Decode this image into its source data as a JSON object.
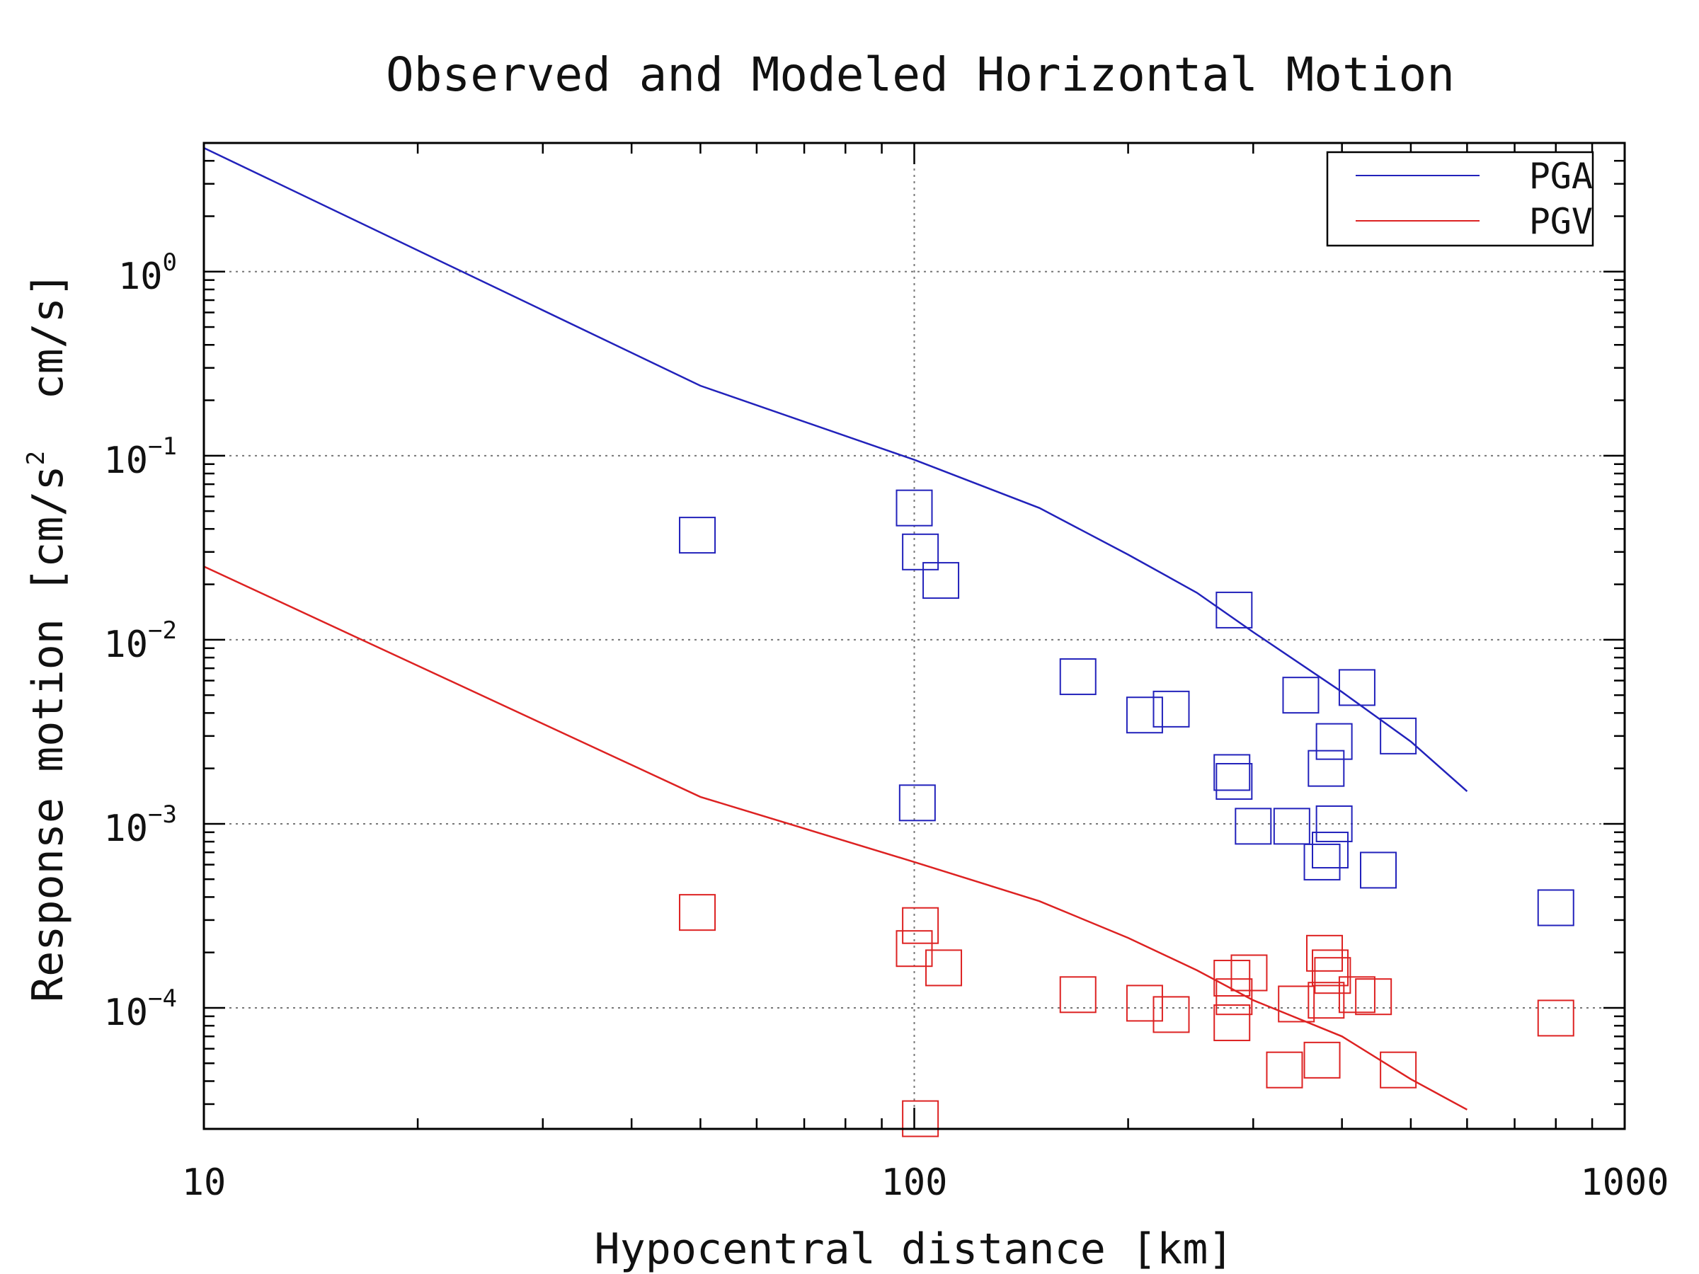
{
  "chart_data": {
    "type": "scatter",
    "title": "Observed and Modeled Horizontal Motion",
    "xlabel": "Hypocentral distance [km]",
    "ylabel_parts": {
      "before": "Response motion [cm/s",
      "sup": "2",
      "after": "  cm/s]"
    },
    "x_scale": "log",
    "y_scale": "log",
    "xlim": [
      10,
      1000
    ],
    "ylim": [
      2.2e-05,
      5
    ],
    "grid": true,
    "legend_position": "top-right",
    "x_ticks": [
      {
        "value": 10,
        "label": "10"
      },
      {
        "value": 100,
        "label": "100"
      },
      {
        "value": 1000,
        "label": "1000"
      }
    ],
    "y_ticks": [
      {
        "value": 1,
        "base": "10",
        "exp": "0"
      },
      {
        "value": 0.1,
        "base": "10",
        "exp": "−1"
      },
      {
        "value": 0.01,
        "base": "10",
        "exp": "−2"
      },
      {
        "value": 0.001,
        "base": "10",
        "exp": "−3"
      },
      {
        "value": 0.0001,
        "base": "10",
        "exp": "−4"
      }
    ],
    "colors": {
      "pga": "#2222bb",
      "pgv": "#dd2222",
      "axes": "#000000",
      "grid": "#777777"
    },
    "series": [
      {
        "name": "PGA",
        "color": "#2222bb",
        "model_line": [
          [
            10,
            4.7
          ],
          [
            50,
            0.24
          ],
          [
            100,
            0.095
          ],
          [
            150,
            0.052
          ],
          [
            200,
            0.029
          ],
          [
            250,
            0.018
          ],
          [
            300,
            0.011
          ],
          [
            400,
            0.0052
          ],
          [
            500,
            0.0028
          ],
          [
            600,
            0.0015
          ]
        ],
        "observed": [
          [
            49.5,
            0.037
          ],
          [
            100,
            0.052
          ],
          [
            102,
            0.03
          ],
          [
            109,
            0.021
          ],
          [
            170,
            0.0063
          ],
          [
            211,
            0.0039
          ],
          [
            230,
            0.0042
          ],
          [
            282,
            0.0145
          ],
          [
            280,
            0.0019
          ],
          [
            282,
            0.0017
          ],
          [
            300,
            0.00097
          ],
          [
            340,
            0.00097
          ],
          [
            350,
            0.005
          ],
          [
            380,
            0.002
          ],
          [
            390,
            0.0028
          ],
          [
            390,
            0.001
          ],
          [
            385,
            0.00072
          ],
          [
            375,
            0.00062
          ],
          [
            420,
            0.0055
          ],
          [
            450,
            0.00056
          ],
          [
            480,
            0.003
          ],
          [
            800,
            0.00035
          ],
          [
            101,
            0.0013
          ]
        ]
      },
      {
        "name": "PGV",
        "color": "#dd2222",
        "model_line": [
          [
            10,
            0.025
          ],
          [
            50,
            0.0014
          ],
          [
            100,
            0.00062
          ],
          [
            150,
            0.00038
          ],
          [
            200,
            0.00024
          ],
          [
            250,
            0.00016
          ],
          [
            300,
            0.00011
          ],
          [
            400,
            7e-05
          ],
          [
            500,
            4.1e-05
          ],
          [
            600,
            2.8e-05
          ]
        ],
        "observed": [
          [
            49.5,
            0.00033
          ],
          [
            100,
            0.00021
          ],
          [
            102,
            0.00028
          ],
          [
            110,
            0.000165
          ],
          [
            170,
            0.000118
          ],
          [
            211,
            0.000106
          ],
          [
            230,
            9.2e-05
          ],
          [
            280,
            0.000145
          ],
          [
            282,
            0.000115
          ],
          [
            280,
            8.3e-05
          ],
          [
            296,
            0.000155
          ],
          [
            332,
            4.6e-05
          ],
          [
            345,
            0.000105
          ],
          [
            375,
            5.2e-05
          ],
          [
            378,
            0.000198
          ],
          [
            385,
            0.000165
          ],
          [
            388,
            0.00015
          ],
          [
            380,
            0.00011
          ],
          [
            420,
            0.000118
          ],
          [
            443,
            0.000115
          ],
          [
            480,
            4.6e-05
          ],
          [
            800,
            8.8e-05
          ],
          [
            102,
            2.5e-05
          ]
        ]
      }
    ]
  }
}
